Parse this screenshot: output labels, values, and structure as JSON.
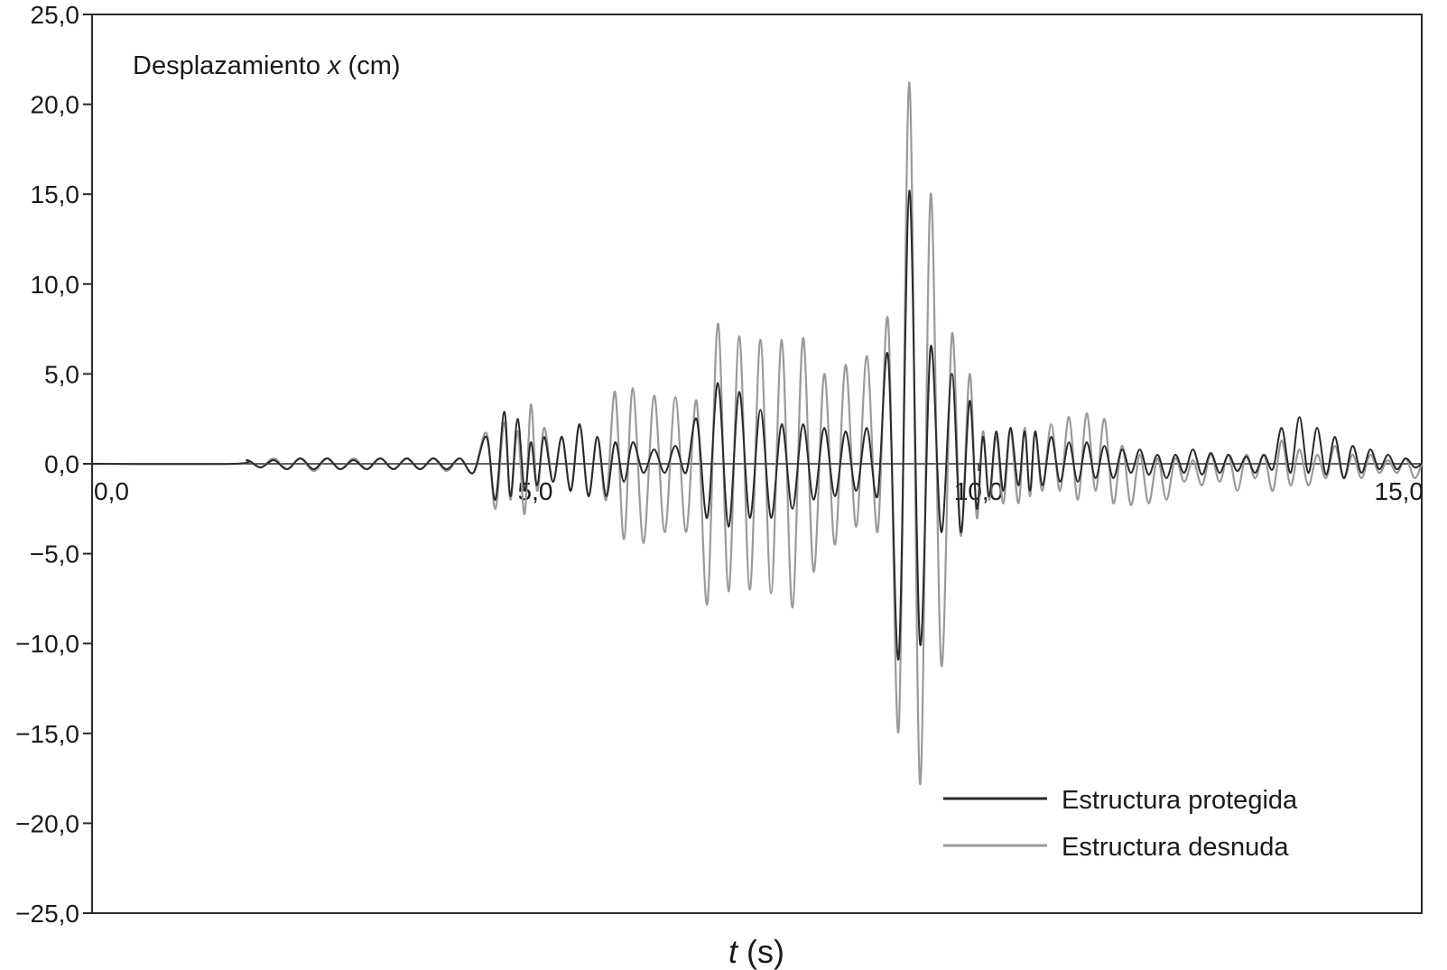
{
  "chart_data": {
    "type": "line",
    "xlabel_italic": "t",
    "xlabel_rest": " (s)",
    "ylabel": "",
    "annotation_prefix": "Desplazamiento ",
    "annotation_italic": "x",
    "annotation_suffix": " (cm)",
    "xlim": [
      0,
      15
    ],
    "ylim": [
      -25,
      25
    ],
    "x_ticks": [
      {
        "value": 0,
        "label": "0,0"
      },
      {
        "value": 5,
        "label": "5,0"
      },
      {
        "value": 10,
        "label": "10,0"
      },
      {
        "value": 15,
        "label": "15,0"
      }
    ],
    "y_ticks": [
      {
        "value": 25,
        "label": "25,0"
      },
      {
        "value": 20,
        "label": "20,0"
      },
      {
        "value": 15,
        "label": "15,0"
      },
      {
        "value": 10,
        "label": "10,0"
      },
      {
        "value": 5,
        "label": "5,0"
      },
      {
        "value": 0,
        "label": "0,0"
      },
      {
        "value": -5,
        "label": "−5,0"
      },
      {
        "value": -10,
        "label": "−10,0"
      },
      {
        "value": -15,
        "label": "−15,0"
      },
      {
        "value": -20,
        "label": "−20,0"
      },
      {
        "value": -25,
        "label": "−25,0"
      }
    ],
    "grid": false,
    "legend_position": "bottom-right",
    "series": [
      {
        "name": "Estructura desnuda",
        "color": "#9a9a9a",
        "x": [
          0.0,
          1.6,
          1.75,
          1.9,
          2.05,
          2.2,
          2.35,
          2.5,
          2.65,
          2.8,
          2.95,
          3.1,
          3.25,
          3.4,
          3.55,
          3.7,
          3.85,
          4.0,
          4.15,
          4.3,
          4.45,
          4.55,
          4.65,
          4.72,
          4.8,
          4.88,
          4.95,
          5.02,
          5.1,
          5.2,
          5.3,
          5.4,
          5.5,
          5.6,
          5.7,
          5.8,
          5.9,
          6.0,
          6.1,
          6.22,
          6.34,
          6.46,
          6.58,
          6.7,
          6.82,
          6.94,
          7.06,
          7.18,
          7.3,
          7.42,
          7.54,
          7.66,
          7.78,
          7.9,
          8.02,
          8.14,
          8.26,
          8.38,
          8.5,
          8.62,
          8.74,
          8.86,
          8.98,
          9.1,
          9.22,
          9.34,
          9.46,
          9.58,
          9.7,
          9.8,
          9.9,
          9.98,
          10.05,
          10.12,
          10.2,
          10.28,
          10.36,
          10.45,
          10.52,
          10.58,
          10.64,
          10.72,
          10.82,
          10.92,
          11.02,
          11.12,
          11.22,
          11.32,
          11.42,
          11.52,
          11.62,
          11.72,
          11.82,
          11.92,
          12.02,
          12.12,
          12.22,
          12.32,
          12.42,
          12.52,
          12.62,
          12.72,
          12.82,
          12.92,
          13.02,
          13.12,
          13.22,
          13.32,
          13.42,
          13.52,
          13.62,
          13.72,
          13.82,
          13.92,
          14.02,
          14.12,
          14.22,
          14.32,
          14.42,
          14.52,
          14.62,
          14.72,
          14.82,
          14.92,
          15.0
        ],
        "y": [
          0.0,
          0.0,
          0.2,
          -0.2,
          0.3,
          -0.3,
          0.3,
          -0.4,
          0.3,
          -0.3,
          0.3,
          -0.3,
          0.3,
          -0.3,
          0.3,
          -0.3,
          0.3,
          -0.4,
          0.3,
          -0.5,
          1.7,
          -2.5,
          2.3,
          -2.0,
          1.8,
          -2.8,
          3.3,
          -1.5,
          2.0,
          -1.0,
          1.5,
          -1.5,
          2.2,
          -1.8,
          1.5,
          -2.0,
          4.0,
          -4.2,
          4.2,
          -4.4,
          3.8,
          -3.8,
          3.7,
          -3.8,
          3.5,
          -7.8,
          7.8,
          -7.1,
          7.1,
          -7.0,
          6.9,
          -7.2,
          6.9,
          -8.0,
          7.0,
          -6.0,
          5.0,
          -4.5,
          5.5,
          -3.5,
          6.0,
          -3.8,
          8.0,
          -14.8,
          21.2,
          -17.8,
          15.0,
          -11.2,
          7.2,
          -4.0,
          5.0,
          -3.0,
          1.8,
          -2.0,
          1.5,
          -2.2,
          1.8,
          -2.2,
          2.0,
          -1.8,
          1.8,
          -1.5,
          2.2,
          -1.5,
          2.6,
          -2.0,
          2.8,
          -1.5,
          2.5,
          -2.2,
          1.0,
          -2.3,
          0.5,
          -2.2,
          0.3,
          -2.0,
          0.3,
          -1.0,
          0.2,
          -1.2,
          0.5,
          -1.0,
          0.5,
          -1.5,
          0.5,
          -0.8,
          0.5,
          -1.5,
          1.3,
          -1.2,
          0.8,
          -1.2,
          0.5,
          -0.8,
          1.0,
          -0.8,
          0.5,
          -0.8,
          0.5,
          -0.5,
          0.2,
          -0.5,
          0.3,
          -0.8,
          0.0
        ]
      },
      {
        "name": "Estructura protegida",
        "color": "#2a2a2a",
        "x": [
          0.0,
          1.6,
          1.75,
          1.9,
          2.05,
          2.2,
          2.35,
          2.5,
          2.65,
          2.8,
          2.95,
          3.1,
          3.25,
          3.4,
          3.55,
          3.7,
          3.85,
          4.0,
          4.15,
          4.3,
          4.45,
          4.55,
          4.65,
          4.72,
          4.8,
          4.88,
          4.95,
          5.02,
          5.1,
          5.2,
          5.3,
          5.4,
          5.5,
          5.6,
          5.7,
          5.8,
          5.9,
          6.0,
          6.1,
          6.22,
          6.34,
          6.46,
          6.58,
          6.7,
          6.82,
          6.94,
          7.06,
          7.18,
          7.3,
          7.42,
          7.54,
          7.66,
          7.78,
          7.9,
          8.02,
          8.14,
          8.26,
          8.38,
          8.5,
          8.62,
          8.74,
          8.86,
          8.98,
          9.1,
          9.22,
          9.34,
          9.46,
          9.58,
          9.7,
          9.8,
          9.9,
          9.98,
          10.05,
          10.12,
          10.2,
          10.28,
          10.36,
          10.45,
          10.52,
          10.58,
          10.64,
          10.72,
          10.82,
          10.92,
          11.02,
          11.12,
          11.22,
          11.32,
          11.42,
          11.52,
          11.62,
          11.72,
          11.82,
          11.92,
          12.02,
          12.12,
          12.22,
          12.32,
          12.42,
          12.52,
          12.62,
          12.72,
          12.82,
          12.92,
          13.02,
          13.12,
          13.22,
          13.32,
          13.42,
          13.52,
          13.62,
          13.72,
          13.82,
          13.92,
          14.02,
          14.12,
          14.22,
          14.32,
          14.42,
          14.52,
          14.62,
          14.72,
          14.82,
          14.92,
          15.0
        ],
        "y": [
          0.0,
          0.0,
          0.2,
          -0.2,
          0.2,
          -0.3,
          0.3,
          -0.3,
          0.3,
          -0.3,
          0.2,
          -0.3,
          0.3,
          -0.3,
          0.3,
          -0.3,
          0.3,
          -0.3,
          0.3,
          -0.5,
          1.5,
          -2.0,
          2.9,
          -1.8,
          2.5,
          -1.5,
          1.2,
          -1.2,
          1.5,
          -1.0,
          1.5,
          -1.5,
          2.2,
          -1.8,
          1.5,
          -1.8,
          1.2,
          -1.0,
          1.2,
          -0.5,
          0.8,
          -0.5,
          1.0,
          -0.5,
          2.5,
          -3.0,
          4.5,
          -3.5,
          4.0,
          -3.0,
          3.0,
          -3.0,
          2.2,
          -2.5,
          2.2,
          -2.0,
          2.0,
          -1.8,
          1.8,
          -1.5,
          2.0,
          -1.8,
          6.0,
          -10.8,
          15.2,
          -10.0,
          6.5,
          -3.8,
          5.0,
          -3.8,
          3.5,
          -2.5,
          1.5,
          -1.8,
          1.8,
          -1.5,
          2.0,
          -1.2,
          1.8,
          -1.5,
          1.8,
          -1.2,
          1.5,
          -1.0,
          1.2,
          -1.0,
          1.2,
          -0.8,
          1.0,
          -0.8,
          0.8,
          -0.5,
          0.8,
          -0.6,
          0.5,
          -0.8,
          0.5,
          -0.5,
          0.8,
          -0.6,
          0.6,
          -0.5,
          0.5,
          -0.4,
          0.4,
          -0.5,
          0.5,
          -0.3,
          2.0,
          -0.5,
          2.6,
          -0.5,
          2.0,
          -0.6,
          1.5,
          -0.8,
          1.0,
          -0.5,
          0.8,
          -0.3,
          0.5,
          -0.3,
          0.3,
          -0.2,
          0.0
        ]
      }
    ]
  }
}
